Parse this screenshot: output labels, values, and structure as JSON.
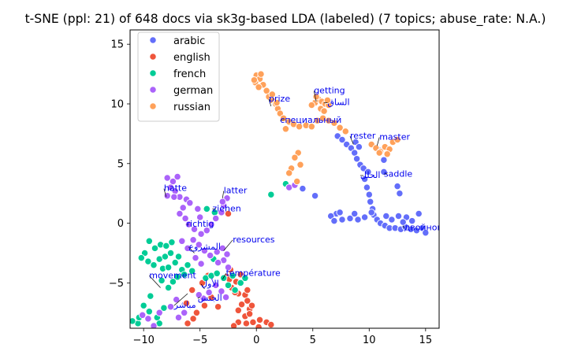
{
  "chart_data": {
    "type": "scatter",
    "title": "t-SNE (ppl: 21) of 648 docs via sk3g-based LDA (labeled) (7 topics; abuse_rate: N.A.)",
    "xlabel": "",
    "ylabel": "",
    "xlim": [
      -11.2,
      16.2
    ],
    "ylim": [
      -8.8,
      16.2
    ],
    "xticks": [
      -10,
      -5,
      0,
      5,
      10,
      15
    ],
    "yticks": [
      -5,
      0,
      5,
      10,
      15
    ],
    "grid": false,
    "legend_position": "top-left",
    "series": [
      {
        "name": "arabic",
        "color": "#636efa",
        "points": [
          [
            7.2,
            7.3
          ],
          [
            7.6,
            7.0
          ],
          [
            8.0,
            6.6
          ],
          [
            8.4,
            6.3
          ],
          [
            8.8,
            6.8
          ],
          [
            9.1,
            6.4
          ],
          [
            8.7,
            5.9
          ],
          [
            8.9,
            5.4
          ],
          [
            9.2,
            4.9
          ],
          [
            9.5,
            4.6
          ],
          [
            9.9,
            4.3
          ],
          [
            9.6,
            3.7
          ],
          [
            9.8,
            3.0
          ],
          [
            10.0,
            2.4
          ],
          [
            10.1,
            1.8
          ],
          [
            10.3,
            1.2
          ],
          [
            10.4,
            0.7
          ],
          [
            10.7,
            0.3
          ],
          [
            11.0,
            0.0
          ],
          [
            11.4,
            -0.2
          ],
          [
            11.8,
            -0.4
          ],
          [
            12.3,
            -0.4
          ],
          [
            12.8,
            -0.5
          ],
          [
            13.2,
            -0.3
          ],
          [
            13.7,
            -0.5
          ],
          [
            14.2,
            -0.6
          ],
          [
            14.7,
            -0.4
          ],
          [
            15.0,
            -0.8
          ],
          [
            12.6,
            0.6
          ],
          [
            13.3,
            0.5
          ],
          [
            13.8,
            0.2
          ],
          [
            14.4,
            0.8
          ],
          [
            12.0,
            0.3
          ],
          [
            11.5,
            0.6
          ],
          [
            9.6,
            0.5
          ],
          [
            9.0,
            0.3
          ],
          [
            8.3,
            0.4
          ],
          [
            7.6,
            0.3
          ],
          [
            7.1,
            0.8
          ],
          [
            6.6,
            0.6
          ],
          [
            7.4,
            0.9
          ],
          [
            6.9,
            0.2
          ],
          [
            8.7,
            0.8
          ],
          [
            10.9,
            6.1
          ],
          [
            11.3,
            5.3
          ],
          [
            12.5,
            3.1
          ],
          [
            12.7,
            2.5
          ],
          [
            11.3,
            4.3
          ],
          [
            4.1,
            2.9
          ],
          [
            5.2,
            2.3
          ],
          [
            10.2,
            0.9
          ],
          [
            13.0,
            0.1
          ]
        ]
      },
      {
        "name": "english",
        "color": "#ef553b",
        "points": [
          [
            -2.5,
            0.8
          ],
          [
            -2.3,
            -3.9
          ],
          [
            -2.6,
            -4.5
          ],
          [
            -1.8,
            -4.9
          ],
          [
            -2.2,
            -5.4
          ],
          [
            -1.6,
            -5.9
          ],
          [
            -1.0,
            -6.0
          ],
          [
            -0.8,
            -6.5
          ],
          [
            -1.3,
            -6.8
          ],
          [
            -1.6,
            -7.3
          ],
          [
            -0.6,
            -7.2
          ],
          [
            -1.0,
            -7.8
          ],
          [
            -1.6,
            -8.3
          ],
          [
            -0.9,
            -8.4
          ],
          [
            -0.3,
            -8.3
          ],
          [
            0.3,
            -8.1
          ],
          [
            0.9,
            -8.3
          ],
          [
            1.3,
            -8.5
          ],
          [
            -1.9,
            -5.8
          ],
          [
            -2.4,
            -4.7
          ],
          [
            -0.8,
            -5.6
          ],
          [
            -1.4,
            -4.3
          ],
          [
            -4.3,
            -4.4
          ],
          [
            -4.8,
            -5.0
          ],
          [
            -5.7,
            -5.6
          ],
          [
            -6.2,
            -6.7
          ],
          [
            -5.3,
            -7.5
          ],
          [
            -6.1,
            -8.4
          ],
          [
            -5.6,
            -8.0
          ],
          [
            -4.6,
            -6.9
          ],
          [
            -3.4,
            -7.0
          ],
          [
            -4.0,
            -6.2
          ],
          [
            -2.0,
            -8.6
          ],
          [
            0.2,
            -8.7
          ],
          [
            -0.4,
            -6.9
          ],
          [
            -0.6,
            -7.6
          ]
        ]
      },
      {
        "name": "french",
        "color": "#00cc96",
        "points": [
          [
            -9.5,
            -1.5
          ],
          [
            -9.0,
            -2.1
          ],
          [
            -8.5,
            -1.8
          ],
          [
            -8.0,
            -1.9
          ],
          [
            -7.5,
            -1.6
          ],
          [
            -9.9,
            -2.5
          ],
          [
            -10.2,
            -2.9
          ],
          [
            -9.6,
            -3.2
          ],
          [
            -9.1,
            -3.5
          ],
          [
            -8.6,
            -3.0
          ],
          [
            -8.1,
            -2.8
          ],
          [
            -7.6,
            -2.5
          ],
          [
            -8.3,
            -3.8
          ],
          [
            -7.8,
            -3.7
          ],
          [
            -7.2,
            -3.3
          ],
          [
            -6.9,
            -2.8
          ],
          [
            -6.1,
            -3.5
          ],
          [
            -6.6,
            -3.9
          ],
          [
            -7.0,
            -4.5
          ],
          [
            -7.4,
            -4.9
          ],
          [
            -7.8,
            -5.4
          ],
          [
            -8.4,
            -4.8
          ],
          [
            -6.4,
            -4.3
          ],
          [
            -5.7,
            -4.0
          ],
          [
            -4.5,
            -4.6
          ],
          [
            -4.0,
            -4.4
          ],
          [
            -3.5,
            -4.2
          ],
          [
            -2.9,
            -4.6
          ],
          [
            -2.5,
            -5.2
          ],
          [
            -1.9,
            -5.6
          ],
          [
            -1.4,
            -5.0
          ],
          [
            -2.1,
            -4.4
          ],
          [
            -3.8,
            -3.0
          ],
          [
            -4.4,
            1.2
          ],
          [
            -3.7,
            0.9
          ],
          [
            -9.4,
            -6.1
          ],
          [
            -10.0,
            -6.9
          ],
          [
            -9.5,
            -7.4
          ],
          [
            -8.8,
            -7.9
          ],
          [
            -8.2,
            -7.1
          ],
          [
            -8.6,
            -8.4
          ],
          [
            -10.5,
            -8.4
          ],
          [
            -11.0,
            -8.2
          ],
          [
            -10.4,
            -7.9
          ],
          [
            1.3,
            2.4
          ],
          [
            2.6,
            3.3
          ],
          [
            -1.0,
            -4.6
          ]
        ]
      },
      {
        "name": "german",
        "color": "#ab63fa",
        "points": [
          [
            -7.9,
            3.8
          ],
          [
            -7.4,
            3.5
          ],
          [
            -7.0,
            3.9
          ],
          [
            -7.6,
            3.0
          ],
          [
            -7.2,
            2.7
          ],
          [
            -7.9,
            2.3
          ],
          [
            -6.8,
            2.2
          ],
          [
            -6.2,
            2.0
          ],
          [
            -5.9,
            1.7
          ],
          [
            -6.5,
            1.3
          ],
          [
            -6.8,
            0.8
          ],
          [
            -6.3,
            0.4
          ],
          [
            -6.0,
            -0.1
          ],
          [
            -5.5,
            -0.5
          ],
          [
            -4.9,
            -0.9
          ],
          [
            -4.4,
            -0.6
          ],
          [
            -4.0,
            -0.1
          ],
          [
            -3.6,
            0.4
          ],
          [
            -3.1,
            0.9
          ],
          [
            -2.9,
            1.5
          ],
          [
            -2.6,
            2.1
          ],
          [
            -3.0,
            1.8
          ],
          [
            -5.2,
            1.2
          ],
          [
            -5.0,
            0.5
          ],
          [
            -5.6,
            -1.4
          ],
          [
            -5.1,
            -1.8
          ],
          [
            -4.6,
            -2.3
          ],
          [
            -4.1,
            -2.7
          ],
          [
            -3.5,
            -2.4
          ],
          [
            -3.0,
            -2.1
          ],
          [
            -2.6,
            -2.6
          ],
          [
            -2.9,
            -3.1
          ],
          [
            -3.4,
            -3.3
          ],
          [
            -2.5,
            -3.7
          ],
          [
            -6.6,
            -1.5
          ],
          [
            -6.1,
            -2.1
          ],
          [
            -5.4,
            -2.9
          ],
          [
            -4.9,
            -3.4
          ],
          [
            -10.1,
            -7.7
          ],
          [
            -9.6,
            -8.0
          ],
          [
            -9.1,
            -8.6
          ],
          [
            -8.6,
            -7.5
          ],
          [
            -7.6,
            -7.0
          ],
          [
            -7.1,
            -6.4
          ],
          [
            -6.9,
            -7.9
          ],
          [
            -6.4,
            -7.5
          ],
          [
            -4.7,
            -6.3
          ],
          [
            -4.2,
            -5.8
          ],
          [
            -3.6,
            -5.2
          ],
          [
            -3.1,
            -5.7
          ],
          [
            -2.7,
            -6.2
          ],
          [
            -5.1,
            -6.0
          ],
          [
            2.9,
            3.0
          ],
          [
            3.4,
            3.2
          ],
          [
            -7.3,
            2.2
          ]
        ]
      },
      {
        "name": "russian",
        "color": "#ffa15a",
        "points": [
          [
            0.0,
            12.4
          ],
          [
            0.3,
            12.1
          ],
          [
            -0.1,
            11.8
          ],
          [
            0.4,
            12.5
          ],
          [
            0.6,
            11.6
          ],
          [
            0.9,
            11.1
          ],
          [
            1.1,
            10.6
          ],
          [
            1.4,
            10.3
          ],
          [
            1.7,
            10.0
          ],
          [
            1.9,
            9.6
          ],
          [
            2.1,
            9.2
          ],
          [
            2.4,
            8.8
          ],
          [
            2.9,
            8.5
          ],
          [
            3.3,
            8.3
          ],
          [
            3.8,
            8.1
          ],
          [
            4.4,
            8.2
          ],
          [
            4.9,
            8.1
          ],
          [
            5.4,
            8.6
          ],
          [
            5.9,
            8.8
          ],
          [
            6.4,
            8.6
          ],
          [
            6.9,
            8.4
          ],
          [
            7.4,
            8.0
          ],
          [
            7.9,
            7.7
          ],
          [
            2.6,
            7.9
          ],
          [
            1.4,
            10.8
          ],
          [
            1.8,
            10.1
          ],
          [
            5.2,
            10.1
          ],
          [
            5.5,
            10.4
          ],
          [
            5.8,
            10.2
          ],
          [
            6.1,
            10.0
          ],
          [
            5.3,
            10.6
          ],
          [
            5.7,
            9.6
          ],
          [
            6.0,
            9.4
          ],
          [
            6.4,
            9.9
          ],
          [
            6.3,
            10.3
          ],
          [
            4.9,
            9.9
          ],
          [
            10.2,
            6.6
          ],
          [
            10.6,
            6.3
          ],
          [
            11.0,
            6.0
          ],
          [
            11.4,
            6.4
          ],
          [
            11.8,
            6.2
          ],
          [
            12.1,
            6.8
          ],
          [
            12.5,
            7.0
          ],
          [
            11.6,
            5.8
          ],
          [
            10.9,
            5.9
          ],
          [
            3.7,
            5.9
          ],
          [
            3.4,
            5.5
          ],
          [
            3.9,
            4.9
          ],
          [
            3.1,
            4.6
          ],
          [
            2.9,
            4.2
          ],
          [
            3.6,
            3.5
          ],
          [
            -0.2,
            12.0
          ],
          [
            0.2,
            11.4
          ]
        ]
      }
    ],
    "annotations": [
      {
        "text": "getting",
        "x": 5.1,
        "y": 10.9,
        "tx": 5.3,
        "ty": 10.2
      },
      {
        "text": "prize",
        "x": 1.1,
        "y": 10.2,
        "tx": 1.3,
        "ty": 9.8
      },
      {
        "text": "الساق",
        "x": 6.3,
        "y": 9.9,
        "tx": 6.0,
        "ty": 10.1
      },
      {
        "text": "специальный",
        "x": 2.1,
        "y": 8.4,
        "tx": 2.5,
        "ty": 8.7
      },
      {
        "text": "rester",
        "x": 8.3,
        "y": 7.1,
        "tx": 8.6,
        "ty": 6.6
      },
      {
        "text": "master",
        "x": 10.9,
        "y": 7.0,
        "tx": 10.7,
        "ty": 6.5
      },
      {
        "text": "saddle",
        "x": 11.3,
        "y": 3.9,
        "tx": 11.6,
        "ty": 4.2
      },
      {
        "text": "الحلل",
        "x": 9.2,
        "y": 3.8,
        "tx": 9.5,
        "ty": 4.0
      },
      {
        "text": "hatte",
        "x": -8.2,
        "y": 2.7,
        "tx": -8.0,
        "ty": 2.2
      },
      {
        "text": "latter",
        "x": -2.9,
        "y": 2.5,
        "tx": -3.0,
        "ty": 2.1
      },
      {
        "text": "ziehen",
        "x": -3.9,
        "y": 1.0,
        "tx": -3.6,
        "ty": 1.2
      },
      {
        "text": "richtig",
        "x": -6.2,
        "y": -0.3,
        "tx": -6.0,
        "ty": -0.1
      },
      {
        "text": "двойной",
        "x": 13.1,
        "y": -0.6,
        "tx": 13.0,
        "ty": -0.2
      },
      {
        "text": "resources",
        "x": -2.1,
        "y": -1.6,
        "tx": -2.9,
        "ty": -2.3
      },
      {
        "text": "المشروع",
        "x": -6.0,
        "y": -2.2,
        "tx": -5.5,
        "ty": -2.5
      },
      {
        "text": "température",
        "x": -2.7,
        "y": -4.4,
        "tx": -3.0,
        "ty": -4.7
      },
      {
        "text": "movement",
        "x": -9.5,
        "y": -4.6,
        "tx": -8.5,
        "ty": -5.4
      },
      {
        "text": "الأول",
        "x": -4.9,
        "y": -5.3,
        "tx": -4.6,
        "ty": -5.5
      },
      {
        "text": "الجنس",
        "x": -5.2,
        "y": -6.5,
        "tx": -5.0,
        "ty": -6.2
      },
      {
        "text": "مباشر",
        "x": -7.3,
        "y": -7.1,
        "tx": -6.1,
        "ty": -5.9
      }
    ]
  }
}
